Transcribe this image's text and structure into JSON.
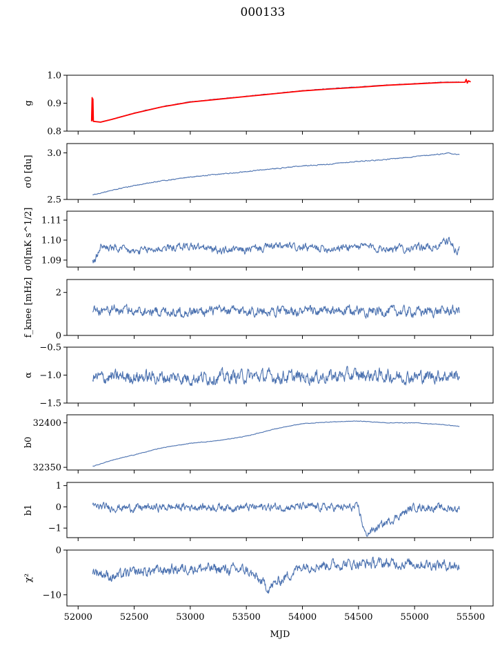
{
  "chart_data": {
    "type": "line",
    "title": "000133",
    "xlabel": "MJD",
    "xlim": [
      51900,
      55700
    ],
    "xticks": [
      52000,
      52500,
      53000,
      53500,
      54000,
      54500,
      55000,
      55500
    ],
    "colors": {
      "series": "#4c72b0",
      "fit": "#ff0000"
    },
    "panels": [
      {
        "key": "g",
        "ylabel": "g",
        "ylim": [
          0.8,
          1.0
        ],
        "yticks": [
          0.8,
          0.9,
          1.0
        ],
        "yticklabels": [
          "0.8",
          "0.9",
          "1.0"
        ],
        "series": [
          {
            "color": "#4c72b0",
            "x": [
              52130,
              52200,
              52300,
              52500,
              52750,
              53000,
              53250,
              53500,
              53750,
              54000,
              54250,
              54500,
              54750,
              55000,
              55250,
              55400
            ],
            "y": [
              0.835,
              0.833,
              0.842,
              0.865,
              0.888,
              0.905,
              0.915,
              0.925,
              0.935,
              0.945,
              0.952,
              0.958,
              0.965,
              0.97,
              0.975,
              0.976
            ]
          },
          {
            "color": "#ff0000",
            "x": [
              52120,
              52125,
              52128,
              52132,
              52136,
              52200,
              52300,
              52500,
              52750,
              53000,
              53250,
              53500,
              53750,
              54000,
              54250,
              54500,
              54750,
              55000,
              55250,
              55450,
              55460,
              55470,
              55480,
              55500
            ],
            "y": [
              0.835,
              0.92,
              0.84,
              0.915,
              0.835,
              0.832,
              0.842,
              0.864,
              0.887,
              0.904,
              0.914,
              0.924,
              0.934,
              0.944,
              0.951,
              0.957,
              0.964,
              0.969,
              0.974,
              0.975,
              0.985,
              0.972,
              0.98,
              0.976
            ]
          }
        ]
      },
      {
        "key": "sigma0_du",
        "ylabel": "σ0 [du]",
        "ylim": [
          2.5,
          3.1
        ],
        "yticks": [
          2.5,
          3.0
        ],
        "yticklabels": [
          "2.5",
          "3.0"
        ],
        "series": [
          {
            "color": "#4c72b0",
            "x": [
              52130,
              52300,
              52500,
              52750,
              53000,
              53250,
              53500,
              53750,
              54000,
              54250,
              54500,
              54750,
              55000,
              55250,
              55300,
              55400
            ],
            "y": [
              2.55,
              2.6,
              2.65,
              2.7,
              2.74,
              2.77,
              2.8,
              2.83,
              2.86,
              2.88,
              2.91,
              2.93,
              2.96,
              2.99,
              3.0,
              2.98
            ]
          }
        ]
      },
      {
        "key": "sigma0_mk",
        "ylabel": "σ0[mK s^1/2]",
        "ylim": [
          1.0865,
          1.1145
        ],
        "yticks": [
          1.09,
          1.1,
          1.11
        ],
        "yticklabels": [
          "1.09",
          "1.10",
          "1.11"
        ],
        "series": [
          {
            "color": "#4c72b0",
            "x": [
              52130,
              52150,
              52200,
              52300,
              52500,
              52750,
              53000,
              53250,
              53500,
              53750,
              54000,
              54250,
              54500,
              54750,
              55000,
              55200,
              55300,
              55380,
              55400
            ],
            "y": [
              1.09,
              1.089,
              1.097,
              1.096,
              1.094,
              1.096,
              1.097,
              1.095,
              1.095,
              1.097,
              1.096,
              1.096,
              1.097,
              1.096,
              1.096,
              1.097,
              1.1,
              1.094,
              1.096
            ]
          }
        ]
      },
      {
        "key": "fknee",
        "ylabel": "f_knee [mHz]",
        "ylim": [
          0,
          2.6
        ],
        "yticks": [
          0,
          2
        ],
        "yticklabels": [
          "0",
          "2"
        ],
        "series": [
          {
            "color": "#4c72b0",
            "x": [
              52130,
              52500,
              53000,
              53500,
              54000,
              54500,
              55000,
              55400
            ],
            "y": [
              1.2,
              1.15,
              1.1,
              1.15,
              1.1,
              1.15,
              1.1,
              1.15
            ]
          }
        ]
      },
      {
        "key": "alpha",
        "ylabel": "α",
        "ylim": [
          -1.5,
          -0.5
        ],
        "yticks": [
          -1.5,
          -1.0,
          -0.5
        ],
        "yticklabels": [
          "−1.5",
          "−1.0",
          "−0.5"
        ],
        "series": [
          {
            "color": "#4c72b0",
            "x": [
              52130,
              52500,
              53000,
              53500,
              54000,
              54500,
              55000,
              55400
            ],
            "y": [
              -1.05,
              -1.03,
              -1.05,
              -1.02,
              -1.04,
              -1.0,
              -1.03,
              -1.0
            ]
          }
        ]
      },
      {
        "key": "b0",
        "ylabel": "b0",
        "ylim": [
          32347,
          32409
        ],
        "yticks": [
          32350,
          32400
        ],
        "yticklabels": [
          "32350",
          "32400"
        ],
        "series": [
          {
            "color": "#4c72b0",
            "x": [
              52130,
              52300,
              52500,
              52750,
              53000,
              53250,
              53500,
              53750,
              54000,
              54250,
              54500,
              54750,
              55000,
              55250,
              55400
            ],
            "y": [
              32351,
              32358,
              32364,
              32372,
              32377,
              32380,
              32385,
              32393,
              32399,
              32401,
              32402,
              32400,
              32400,
              32398,
              32396
            ]
          }
        ]
      },
      {
        "key": "b1",
        "ylabel": "b1",
        "ylim": [
          -1.45,
          1.15
        ],
        "yticks": [
          -1,
          0,
          1
        ],
        "yticklabels": [
          "−1",
          "0",
          "1"
        ],
        "series": [
          {
            "color": "#4c72b0",
            "x": [
              52130,
              52500,
              53000,
              53500,
              54000,
              54500,
              54560,
              55000,
              55400
            ],
            "y": [
              0.0,
              -0.05,
              0.0,
              -0.02,
              0.0,
              -0.05,
              -1.3,
              0.0,
              -0.1
            ]
          }
        ]
      },
      {
        "key": "chi2",
        "ylabel": "χ²",
        "ylim": [
          -12.5,
          0
        ],
        "yticks": [
          -10,
          0
        ],
        "yticklabels": [
          "−10",
          "0"
        ],
        "series": [
          {
            "color": "#4c72b0",
            "x": [
              52130,
              52300,
              52500,
              53000,
              53500,
              53700,
              54000,
              54500,
              55000,
              55400
            ],
            "y": [
              -4.5,
              -6.0,
              -5.0,
              -4.0,
              -4.5,
              -8.5,
              -3.5,
              -3.0,
              -3.0,
              -3.5
            ]
          }
        ]
      }
    ]
  }
}
